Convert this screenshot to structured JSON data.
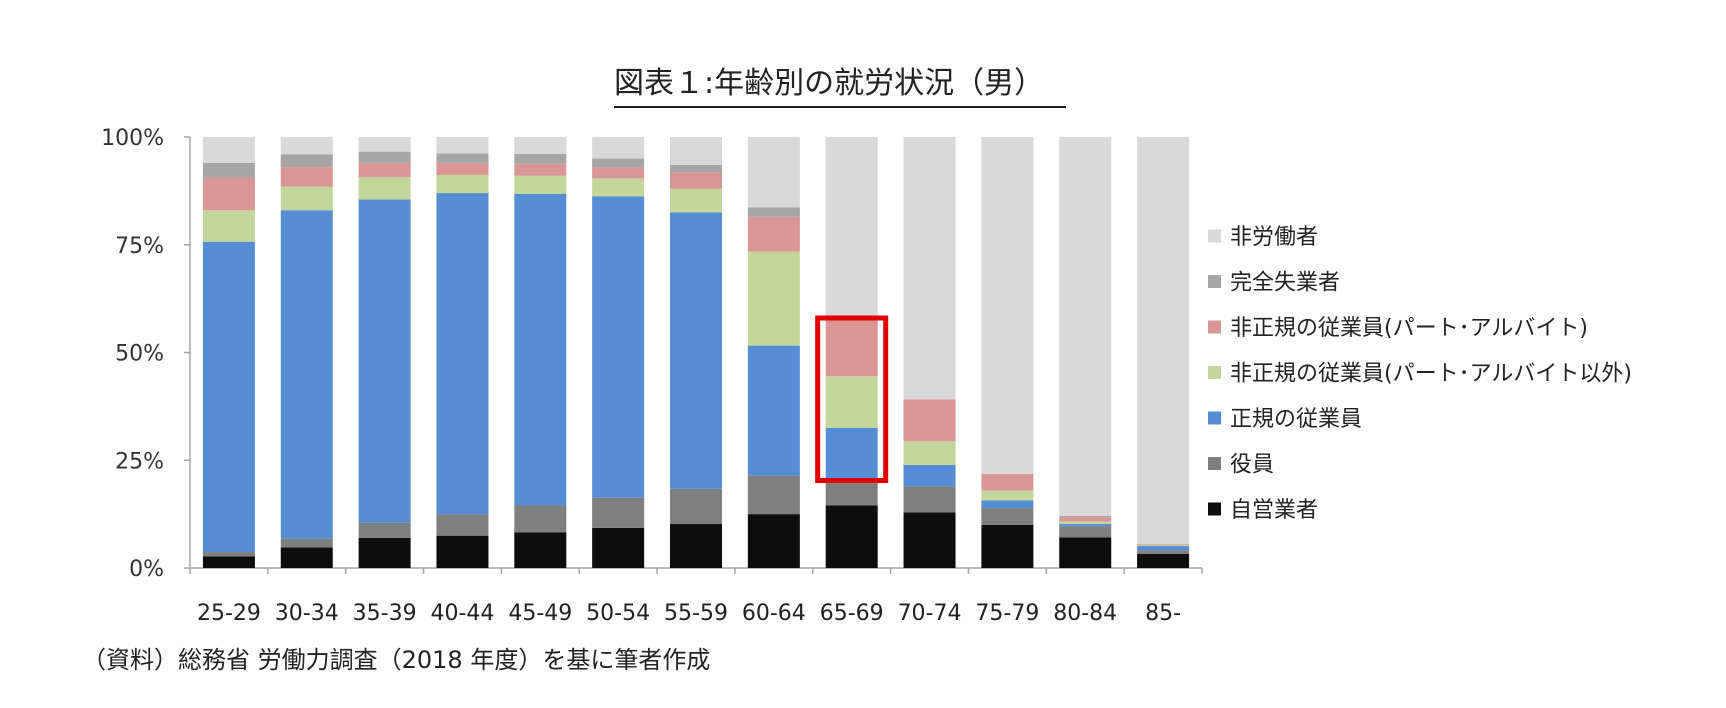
{
  "chart_data": {
    "type": "bar",
    "stacked": true,
    "normalized": true,
    "title": "図表１:年齢別の就労状況（男）",
    "xlabel": "",
    "ylabel": "",
    "ylim": [
      0,
      100
    ],
    "y_ticks": [
      "0%",
      "25%",
      "50%",
      "75%",
      "100%"
    ],
    "categories": [
      "25-29",
      "30-34",
      "35-39",
      "40-44",
      "45-49",
      "50-54",
      "55-59",
      "60-64",
      "65-69",
      "70-74",
      "75-79",
      "80-84",
      "85-"
    ],
    "series": [
      {
        "name": "自営業者",
        "color": "#0d0d0d",
        "values": [
          2.7,
          4.8,
          7.0,
          7.5,
          8.3,
          9.3,
          10.2,
          12.5,
          14.5,
          12.9,
          10.0,
          7.1,
          3.3
        ]
      },
      {
        "name": "役員",
        "color": "#7f7f7f",
        "values": [
          1.0,
          2.0,
          3.5,
          5.0,
          6.2,
          7.0,
          8.2,
          9.0,
          5.8,
          6.1,
          3.9,
          2.6,
          0.8
        ]
      },
      {
        "name": "正規の従業員",
        "color": "#558ed5",
        "values": [
          72.0,
          76.2,
          75.0,
          74.5,
          72.3,
          69.9,
          64.1,
          30.1,
          12.2,
          4.9,
          1.8,
          0.5,
          1.0
        ]
      },
      {
        "name": "非正規の従業員(パート･アルバイト以外)",
        "color": "#c3d69b",
        "values": [
          7.3,
          5.5,
          5.2,
          4.2,
          4.2,
          4.2,
          5.5,
          21.8,
          12.0,
          5.5,
          2.3,
          0.6,
          0.3
        ]
      },
      {
        "name": "非正規の従業員(パート･アルバイト)",
        "color": "#d99694",
        "values": [
          7.5,
          4.5,
          3.3,
          2.8,
          2.8,
          2.5,
          3.7,
          8.1,
          13.3,
          9.7,
          3.8,
          1.0,
          0.2
        ]
      },
      {
        "name": "完全失業者",
        "color": "#a6a6a6",
        "values": [
          3.5,
          3.0,
          2.6,
          2.2,
          2.3,
          2.1,
          1.8,
          2.2,
          0.0,
          0.0,
          0.0,
          0.3,
          0.0
        ]
      },
      {
        "name": "非労働者",
        "color": "#d9d9d9",
        "values": [
          6.0,
          4.0,
          3.4,
          3.8,
          3.9,
          5.0,
          6.5,
          16.3,
          42.2,
          60.9,
          78.2,
          87.9,
          94.4
        ]
      }
    ],
    "legend_order": [
      "非労働者",
      "完全失業者",
      "非正規の従業員(パート･アルバイト)",
      "非正規の従業員(パート･アルバイト以外)",
      "正規の従業員",
      "役員",
      "自営業者"
    ],
    "legend_position": "right",
    "highlight": {
      "category": "65-69",
      "from": 20.3,
      "to": 58.0,
      "color": "#e00000"
    },
    "grid": false
  },
  "source_note": "（資料）総務省  労働力調査（2018 年度）を基に筆者作成"
}
